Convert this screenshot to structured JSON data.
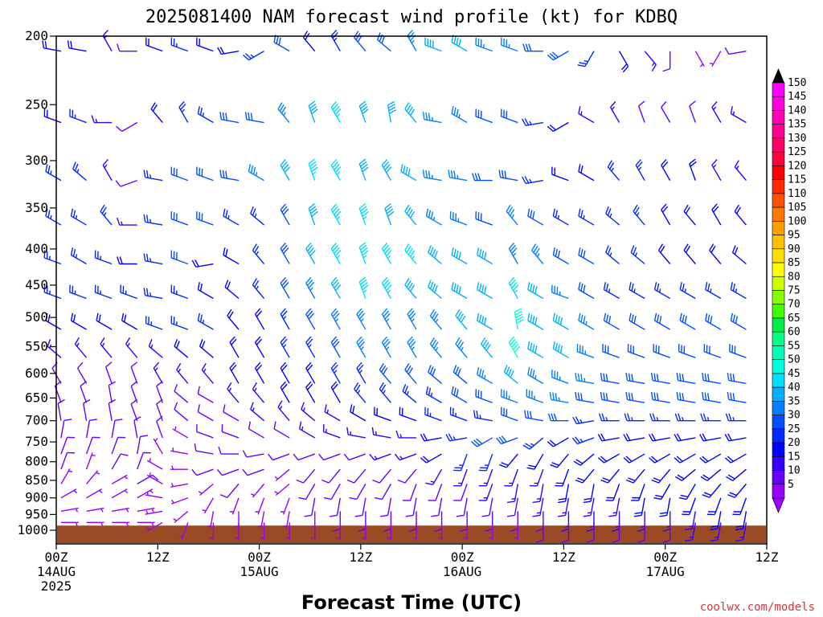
{
  "title": "2025081400 NAM forecast wind profile (kt) for KDBQ",
  "credit": "coolwx.com/models",
  "chart_data": {
    "type": "wind-barb time-height section",
    "title": "2025081400 NAM forecast wind profile (kt) for KDBQ",
    "xlabel": "Forecast Time (UTC)",
    "ylabel": "",
    "y_axis": {
      "scale": "log-pressure (hPa), inverted",
      "range": [
        1000,
        200
      ],
      "tick_labels": [
        "200",
        "250",
        "300",
        "350",
        "400",
        "450",
        "500",
        "550",
        "600",
        "650",
        "700",
        "750",
        "800",
        "850",
        "900",
        "950",
        "1000"
      ]
    },
    "x_axis": {
      "range_hours": [
        0,
        84
      ],
      "ticks": [
        {
          "hour": 0,
          "label": "00Z",
          "date": "14AUG",
          "year": "2025"
        },
        {
          "hour": 12,
          "label": "12Z",
          "date": "",
          "year": ""
        },
        {
          "hour": 24,
          "label": "00Z",
          "date": "15AUG",
          "year": ""
        },
        {
          "hour": 36,
          "label": "12Z",
          "date": "",
          "year": ""
        },
        {
          "hour": 48,
          "label": "00Z",
          "date": "16AUG",
          "year": ""
        },
        {
          "hour": 60,
          "label": "12Z",
          "date": "",
          "year": ""
        },
        {
          "hour": 72,
          "label": "00Z",
          "date": "17AUG",
          "year": ""
        },
        {
          "hour": 84,
          "label": "12Z",
          "date": "",
          "year": ""
        }
      ]
    },
    "colorbar": {
      "unit": "kt",
      "labels": [
        "150",
        "145",
        "140",
        "135",
        "130",
        "125",
        "120",
        "115",
        "110",
        "105",
        "100",
        "95",
        "90",
        "85",
        "80",
        "75",
        "70",
        "65",
        "60",
        "55",
        "50",
        "45",
        "40",
        "35",
        "30",
        "25",
        "20",
        "15",
        "10",
        "5"
      ],
      "colors": [
        "#ff00ff",
        "#ff00dd",
        "#ff00b4",
        "#ff0090",
        "#ff006a",
        "#ff0040",
        "#ff0000",
        "#ff2800",
        "#ff5000",
        "#ff7800",
        "#ffa000",
        "#ffc000",
        "#ffe000",
        "#ffff00",
        "#ccff00",
        "#88ff00",
        "#40ff00",
        "#00ee44",
        "#00ff88",
        "#00ffbb",
        "#00ffe0",
        "#00ddff",
        "#00b0ff",
        "#0080ff",
        "#0050ff",
        "#0028ff",
        "#0000ff",
        "#3300ff",
        "#6600ff",
        "#9900ff"
      ]
    },
    "x_hours_spacing": 3,
    "levels_hpa": [
      210,
      265,
      320,
      370,
      420,
      470,
      520,
      570,
      620,
      660,
      700,
      740,
      780,
      820,
      860,
      900,
      940,
      975
    ],
    "ground_hpa": 985,
    "terrain_color": "#9b4a26",
    "wind_speed_kt_by_level": [
      [
        20,
        20,
        15,
        10,
        20,
        25,
        20,
        20,
        25,
        30,
        20,
        25,
        30,
        30,
        35,
        40,
        40,
        35,
        35,
        30,
        30,
        25,
        20,
        15,
        10,
        5,
        5,
        10,
        15,
        20
      ],
      [
        20,
        25,
        15,
        10,
        20,
        25,
        25,
        30,
        30,
        35,
        40,
        45,
        40,
        40,
        40,
        35,
        35,
        30,
        30,
        25,
        20,
        15,
        15,
        10,
        10,
        10,
        15,
        15,
        10,
        10
      ],
      [
        25,
        25,
        15,
        10,
        25,
        30,
        30,
        30,
        35,
        40,
        45,
        45,
        40,
        40,
        40,
        35,
        35,
        30,
        30,
        25,
        20,
        20,
        25,
        25,
        20,
        20,
        15,
        15,
        10,
        10
      ],
      [
        25,
        25,
        25,
        15,
        25,
        30,
        30,
        25,
        25,
        30,
        40,
        45,
        45,
        40,
        40,
        35,
        35,
        30,
        35,
        30,
        25,
        25,
        25,
        25,
        20,
        20,
        20,
        20,
        15,
        15
      ],
      [
        25,
        25,
        25,
        20,
        25,
        30,
        20,
        20,
        25,
        30,
        40,
        45,
        45,
        45,
        45,
        40,
        40,
        40,
        35,
        35,
        30,
        30,
        25,
        25,
        20,
        20,
        20,
        20,
        20,
        20
      ],
      [
        25,
        25,
        25,
        25,
        25,
        25,
        20,
        20,
        25,
        30,
        35,
        40,
        45,
        45,
        40,
        40,
        40,
        40,
        45,
        40,
        35,
        30,
        25,
        25,
        25,
        25,
        25,
        25,
        25,
        25
      ],
      [
        20,
        20,
        20,
        20,
        25,
        25,
        25,
        20,
        20,
        25,
        30,
        35,
        35,
        35,
        35,
        35,
        40,
        40,
        50,
        40,
        40,
        35,
        30,
        30,
        30,
        30,
        30,
        30,
        30,
        30
      ],
      [
        15,
        15,
        15,
        15,
        15,
        20,
        20,
        20,
        20,
        25,
        25,
        30,
        35,
        35,
        35,
        35,
        35,
        40,
        50,
        40,
        40,
        35,
        30,
        30,
        30,
        30,
        30,
        30,
        30,
        30
      ],
      [
        10,
        10,
        10,
        10,
        15,
        15,
        15,
        20,
        20,
        20,
        20,
        25,
        25,
        30,
        30,
        30,
        30,
        35,
        40,
        35,
        35,
        35,
        30,
        30,
        30,
        30,
        30,
        30,
        30,
        30
      ],
      [
        10,
        10,
        10,
        10,
        10,
        10,
        10,
        15,
        15,
        20,
        20,
        20,
        25,
        25,
        25,
        25,
        30,
        30,
        35,
        35,
        35,
        30,
        30,
        30,
        30,
        30,
        30,
        30,
        30,
        30
      ],
      [
        10,
        10,
        10,
        10,
        10,
        10,
        10,
        10,
        15,
        15,
        15,
        15,
        20,
        20,
        20,
        25,
        25,
        25,
        30,
        30,
        30,
        25,
        25,
        25,
        25,
        25,
        25,
        25,
        25,
        25
      ],
      [
        10,
        10,
        10,
        10,
        10,
        5,
        10,
        10,
        10,
        10,
        15,
        15,
        15,
        15,
        15,
        20,
        25,
        30,
        30,
        25,
        20,
        25,
        20,
        20,
        20,
        20,
        20,
        20,
        20,
        20
      ],
      [
        10,
        10,
        10,
        10,
        5,
        5,
        10,
        10,
        10,
        10,
        10,
        10,
        10,
        15,
        15,
        20,
        25,
        25,
        20,
        20,
        20,
        20,
        20,
        20,
        20,
        20,
        20,
        20,
        20,
        20
      ],
      [
        10,
        5,
        10,
        10,
        5,
        5,
        10,
        10,
        10,
        5,
        10,
        10,
        10,
        10,
        10,
        15,
        15,
        15,
        15,
        15,
        20,
        20,
        20,
        20,
        20,
        20,
        20,
        20,
        20,
        15
      ],
      [
        5,
        5,
        5,
        10,
        5,
        5,
        5,
        10,
        5,
        5,
        10,
        10,
        10,
        10,
        10,
        10,
        10,
        15,
        15,
        15,
        20,
        20,
        20,
        20,
        20,
        20,
        20,
        20,
        15,
        15
      ],
      [
        5,
        5,
        5,
        5,
        5,
        5,
        5,
        5,
        5,
        5,
        10,
        10,
        10,
        10,
        10,
        10,
        10,
        10,
        10,
        15,
        15,
        15,
        15,
        20,
        20,
        20,
        20,
        20,
        15,
        15
      ],
      [
        5,
        5,
        5,
        5,
        5,
        5,
        5,
        5,
        5,
        5,
        5,
        10,
        10,
        10,
        10,
        10,
        10,
        10,
        10,
        10,
        15,
        15,
        15,
        15,
        15,
        15,
        20,
        20,
        15,
        15
      ],
      [
        5,
        5,
        5,
        5,
        5,
        5,
        5,
        5,
        5,
        5,
        5,
        5,
        5,
        5,
        5,
        5,
        5,
        5,
        5,
        10,
        10,
        10,
        10,
        10,
        10,
        15,
        15,
        15,
        15,
        15
      ]
    ],
    "wind_dir_deg_by_level": [
      [
        280,
        280,
        330,
        270,
        290,
        290,
        290,
        260,
        240,
        300,
        320,
        330,
        320,
        310,
        330,
        290,
        300,
        290,
        290,
        270,
        240,
        210,
        150,
        140,
        180,
        150,
        210,
        260,
        270,
        260
      ],
      [
        290,
        290,
        270,
        240,
        320,
        330,
        300,
        280,
        280,
        320,
        340,
        330,
        340,
        350,
        320,
        280,
        300,
        290,
        290,
        260,
        240,
        300,
        330,
        340,
        330,
        340,
        330,
        300,
        270,
        280
      ],
      [
        300,
        310,
        330,
        250,
        280,
        290,
        290,
        280,
        300,
        330,
        340,
        330,
        340,
        330,
        300,
        280,
        280,
        270,
        280,
        260,
        290,
        300,
        320,
        330,
        330,
        340,
        330,
        320,
        310,
        330
      ],
      [
        300,
        300,
        320,
        270,
        280,
        290,
        290,
        300,
        310,
        330,
        340,
        330,
        340,
        340,
        320,
        300,
        290,
        290,
        320,
        300,
        300,
        300,
        310,
        320,
        330,
        320,
        330,
        320,
        310,
        320
      ],
      [
        290,
        300,
        290,
        270,
        280,
        290,
        260,
        300,
        320,
        330,
        330,
        330,
        340,
        330,
        320,
        310,
        300,
        300,
        330,
        320,
        300,
        300,
        310,
        310,
        320,
        320,
        320,
        310,
        300,
        300
      ],
      [
        290,
        290,
        290,
        290,
        280,
        290,
        300,
        310,
        320,
        330,
        330,
        330,
        340,
        330,
        320,
        310,
        300,
        300,
        330,
        300,
        290,
        300,
        300,
        300,
        300,
        300,
        300,
        300,
        290,
        290
      ],
      [
        300,
        300,
        300,
        300,
        290,
        290,
        300,
        320,
        330,
        330,
        330,
        330,
        330,
        330,
        330,
        320,
        320,
        300,
        350,
        300,
        300,
        300,
        300,
        300,
        300,
        300,
        300,
        300,
        300,
        300
      ],
      [
        310,
        320,
        320,
        320,
        310,
        310,
        310,
        330,
        330,
        330,
        330,
        330,
        330,
        330,
        330,
        320,
        320,
        320,
        330,
        300,
        300,
        290,
        290,
        290,
        290,
        290,
        290,
        290,
        290,
        290
      ],
      [
        330,
        330,
        340,
        340,
        330,
        320,
        320,
        330,
        330,
        330,
        330,
        330,
        330,
        320,
        320,
        310,
        310,
        300,
        310,
        300,
        290,
        280,
        280,
        280,
        280,
        280,
        280,
        280,
        280,
        280
      ],
      [
        340,
        340,
        350,
        340,
        340,
        310,
        300,
        320,
        320,
        330,
        330,
        330,
        320,
        320,
        310,
        300,
        300,
        290,
        290,
        290,
        280,
        280,
        280,
        280,
        280,
        280,
        280,
        280,
        280,
        280
      ],
      [
        350,
        350,
        350,
        340,
        340,
        310,
        300,
        300,
        310,
        320,
        310,
        300,
        300,
        290,
        290,
        290,
        290,
        280,
        290,
        280,
        270,
        260,
        270,
        270,
        270,
        270,
        270,
        270,
        270,
        270
      ],
      [
        10,
        10,
        10,
        350,
        340,
        300,
        290,
        290,
        300,
        300,
        300,
        290,
        280,
        280,
        270,
        260,
        260,
        240,
        250,
        230,
        240,
        250,
        260,
        260,
        260,
        260,
        260,
        260,
        260,
        260
      ],
      [
        20,
        20,
        20,
        10,
        330,
        280,
        280,
        270,
        260,
        250,
        250,
        250,
        250,
        250,
        250,
        240,
        200,
        200,
        220,
        210,
        220,
        230,
        240,
        240,
        240,
        240,
        240,
        240,
        240,
        240
      ],
      [
        20,
        20,
        30,
        20,
        300,
        270,
        250,
        250,
        250,
        230,
        220,
        220,
        220,
        220,
        220,
        210,
        200,
        200,
        200,
        200,
        200,
        220,
        220,
        220,
        220,
        230,
        230,
        230,
        230,
        230
      ],
      [
        30,
        40,
        60,
        60,
        300,
        260,
        230,
        220,
        220,
        230,
        210,
        210,
        210,
        210,
        200,
        200,
        200,
        200,
        190,
        190,
        190,
        190,
        200,
        200,
        210,
        210,
        220,
        220,
        220,
        220
      ],
      [
        60,
        60,
        60,
        60,
        280,
        250,
        210,
        200,
        200,
        200,
        190,
        190,
        190,
        190,
        190,
        190,
        190,
        190,
        190,
        190,
        190,
        190,
        190,
        190,
        190,
        200,
        200,
        200,
        200,
        200
      ],
      [
        80,
        80,
        80,
        80,
        260,
        230,
        190,
        180,
        190,
        190,
        180,
        180,
        180,
        180,
        180,
        180,
        180,
        180,
        180,
        180,
        180,
        180,
        180,
        180,
        180,
        190,
        190,
        190,
        190,
        190
      ],
      [
        90,
        90,
        90,
        90,
        240,
        200,
        180,
        180,
        180,
        180,
        180,
        180,
        180,
        180,
        180,
        180,
        180,
        180,
        180,
        180,
        180,
        180,
        180,
        180,
        180,
        190,
        190,
        190,
        190,
        190
      ]
    ]
  }
}
